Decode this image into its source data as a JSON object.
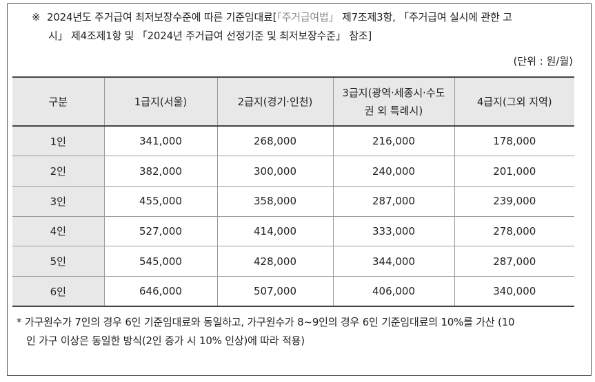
{
  "note": {
    "mark": "※",
    "part1": "2024년도 주거급여 최저보장수준에 따른 기준임대료[",
    "lite": "「주거급여법」",
    "part2": " 제7조제3항, 「주거급여 실시에 관한 고",
    "line2": "시」 제4조제1항 및 「2024년 주거급여 선정기준 및 최저보장수준」 참조]"
  },
  "unit": "(단위 : 원/월)",
  "table": {
    "headers": [
      "구분",
      "1급지(서울)",
      "2급지(경기·인천)",
      "3급지(광역·세종시·수도",
      "권 외 특례시)",
      "4급지(그외 지역)"
    ],
    "rows": [
      {
        "label": "1인",
        "values": [
          "341,000",
          "268,000",
          "216,000",
          "178,000"
        ]
      },
      {
        "label": "2인",
        "values": [
          "382,000",
          "300,000",
          "240,000",
          "201,000"
        ]
      },
      {
        "label": "3인",
        "values": [
          "455,000",
          "358,000",
          "287,000",
          "239,000"
        ]
      },
      {
        "label": "4인",
        "values": [
          "527,000",
          "414,000",
          "333,000",
          "278,000"
        ]
      },
      {
        "label": "5인",
        "values": [
          "545,000",
          "428,000",
          "344,000",
          "287,000"
        ]
      },
      {
        "label": "6인",
        "values": [
          "646,000",
          "507,000",
          "406,000",
          "340,000"
        ]
      }
    ]
  },
  "footnote": {
    "line1": "* 가구원수가 7인의 경우 6인 기준임대료와 동일하고, 가구원수가 8~9인의 경우 6인 기준임대료의 10%를 가산 (10",
    "line2": "인 가구 이상은 동일한 방식(2인 증가 시 10% 인상)에 따라 적용)"
  }
}
